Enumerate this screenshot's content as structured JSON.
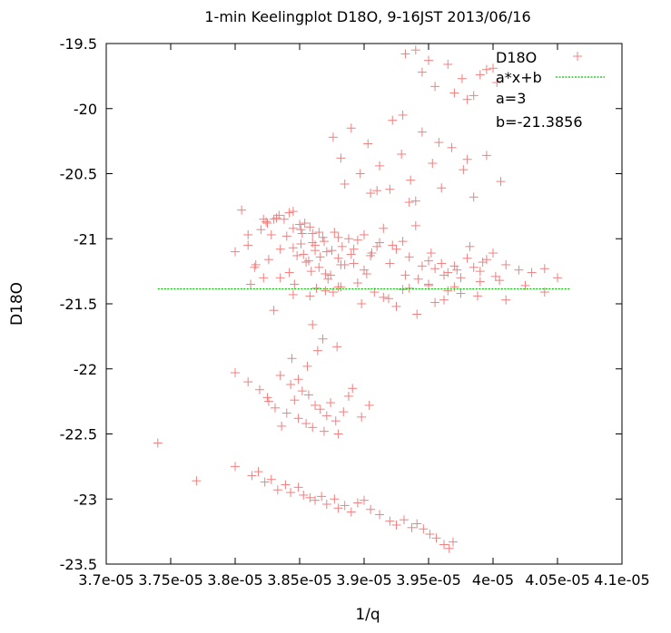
{
  "chart_data": {
    "type": "scatter",
    "title": "1-min Keelingplot D18O, 9-16JST 2013/06/16",
    "xlabel": "1/q",
    "ylabel": "D18O",
    "xlim": [
      3.7e-05,
      4.1e-05
    ],
    "ylim": [
      -23.5,
      -19.5
    ],
    "x_ticks": [
      3.7e-05,
      3.75e-05,
      3.8e-05,
      3.85e-05,
      3.9e-05,
      3.95e-05,
      4e-05,
      4.05e-05,
      4.1e-05
    ],
    "x_tick_labels": [
      "3.7e-05",
      "3.75e-05",
      "3.8e-05",
      "3.85e-05",
      "3.9e-05",
      "3.95e-05",
      "4e-05",
      "4.05e-05",
      "4.1e-05"
    ],
    "y_ticks": [
      -23.5,
      -23,
      -22.5,
      -22,
      -21.5,
      -21,
      -20.5,
      -20,
      -19.5
    ],
    "y_tick_labels": [
      "-23.5",
      "-23",
      "-22.5",
      "-22",
      "-21.5",
      "-21",
      "-20.5",
      "-20",
      "-19.5"
    ],
    "grid": false,
    "legend_position": "top-right",
    "series": [
      {
        "name": "D18O",
        "marker": "plus",
        "color": "#f08080",
        "x": [
          3.74e-05,
          3.77e-05,
          3.8e-05,
          3.813e-05,
          3.818e-05,
          3.823e-05,
          3.828e-05,
          3.833e-05,
          3.839e-05,
          3.843e-05,
          3.849e-05,
          3.853e-05,
          3.858e-05,
          3.862e-05,
          3.867e-05,
          3.871e-05,
          3.877e-05,
          3.88e-05,
          3.885e-05,
          3.89e-05,
          3.895e-05,
          3.9e-05,
          3.905e-05,
          3.912e-05,
          3.92e-05,
          3.925e-05,
          3.931e-05,
          3.937e-05,
          3.941e-05,
          3.946e-05,
          3.951e-05,
          3.956e-05,
          3.962e-05,
          3.966e-05,
          3.969e-05,
          3.8e-05,
          3.81e-05,
          3.819e-05,
          3.825e-05,
          3.831e-05,
          3.835e-05,
          3.84e-05,
          3.843e-05,
          3.846e-05,
          3.849e-05,
          3.852e-05,
          3.855e-05,
          3.857e-05,
          3.86e-05,
          3.862e-05,
          3.866e-05,
          3.869e-05,
          3.871e-05,
          3.874e-05,
          3.878e-05,
          3.88e-05,
          3.884e-05,
          3.888e-05,
          3.891e-05,
          3.898e-05,
          3.904e-05,
          3.844e-05,
          3.86e-05,
          3.849e-05,
          3.856e-05,
          3.868e-05,
          3.879e-05,
          3.836e-05,
          3.826e-05,
          3.864e-05,
          3.816e-05,
          3.822e-05,
          3.828e-05,
          3.835e-05,
          3.838e-05,
          3.842e-05,
          3.845e-05,
          3.848e-05,
          3.851e-05,
          3.854e-05,
          3.857e-05,
          3.86e-05,
          3.862e-05,
          3.865e-05,
          3.868e-05,
          3.871e-05,
          3.874e-05,
          3.877e-05,
          3.88e-05,
          3.883e-05,
          3.888e-05,
          3.892e-05,
          3.9e-05,
          3.906e-05,
          3.846e-05,
          3.853e-05,
          3.858e-05,
          3.863e-05,
          3.869e-05,
          3.834e-05,
          3.824e-05,
          3.859e-05,
          3.851e-05,
          3.866e-05,
          3.876e-05,
          3.8e-05,
          3.805e-05,
          3.81e-05,
          3.815e-05,
          3.82e-05,
          3.826e-05,
          3.83e-05,
          3.835e-05,
          3.84e-05,
          3.845e-05,
          3.85e-05,
          3.855e-05,
          3.86e-05,
          3.865e-05,
          3.87e-05,
          3.875e-05,
          3.88e-05,
          3.885e-05,
          3.89e-05,
          3.895e-05,
          3.9e-05,
          3.905e-05,
          3.91e-05,
          3.915e-05,
          3.92e-05,
          3.925e-05,
          3.93e-05,
          3.935e-05,
          3.94e-05,
          3.945e-05,
          3.95e-05,
          3.955e-05,
          3.96e-05,
          3.965e-05,
          3.97e-05,
          3.975e-05,
          3.98e-05,
          3.985e-05,
          3.99e-05,
          3.995e-05,
          4e-05,
          4.01e-05,
          4.02e-05,
          4.03e-05,
          4.04e-05,
          4.05e-05,
          3.812e-05,
          3.832e-05,
          3.852e-05,
          3.872e-05,
          3.892e-05,
          3.912e-05,
          3.932e-05,
          3.952e-05,
          3.972e-05,
          3.992e-05,
          3.822e-05,
          3.842e-05,
          3.862e-05,
          3.882e-05,
          3.902e-05,
          3.922e-05,
          3.942e-05,
          3.962e-05,
          3.982e-05,
          4.002e-05,
          3.83e-05,
          3.858e-05,
          3.882e-05,
          3.898e-05,
          3.908e-05,
          3.919e-05,
          3.93e-05,
          3.941e-05,
          3.95e-05,
          3.962e-05,
          3.975e-05,
          3.99e-05,
          4.01e-05,
          4.025e-05,
          3.845e-05,
          3.87e-05,
          3.895e-05,
          3.915e-05,
          3.935e-05,
          3.955e-05,
          3.97e-05,
          3.988e-05,
          4.005e-05,
          4.04e-05,
          3.88e-05,
          3.925e-05,
          3.95e-05,
          3.965e-05,
          3.876e-05,
          3.882e-05,
          3.89e-05,
          3.897e-05,
          3.903e-05,
          3.912e-05,
          3.92e-05,
          3.929e-05,
          3.936e-05,
          3.945e-05,
          3.953e-05,
          3.96e-05,
          3.968e-05,
          3.977e-05,
          3.985e-05,
          3.995e-05,
          4.006e-05,
          3.905e-05,
          3.93e-05,
          3.958e-05,
          3.98e-05,
          3.94e-05,
          3.922e-05,
          3.932e-05,
          3.945e-05,
          3.955e-05,
          3.965e-05,
          3.976e-05,
          3.985e-05,
          3.995e-05,
          4.003e-05,
          3.95e-05,
          3.97e-05,
          3.99e-05,
          4e-05,
          3.94e-05,
          3.98e-05,
          3.81e-05,
          3.825e-05,
          3.845e-05,
          3.885e-05,
          3.91e-05,
          3.935e-05
        ],
        "y": [
          -22.57,
          -22.86,
          -22.75,
          -22.82,
          -22.79,
          -22.87,
          -22.85,
          -22.93,
          -22.89,
          -22.95,
          -22.91,
          -22.97,
          -22.99,
          -23.01,
          -22.98,
          -23.04,
          -23.0,
          -23.07,
          -23.05,
          -23.1,
          -23.03,
          -23.01,
          -23.08,
          -23.12,
          -23.17,
          -23.2,
          -23.16,
          -23.22,
          -23.19,
          -23.23,
          -23.27,
          -23.3,
          -23.35,
          -23.38,
          -23.33,
          -22.03,
          -22.1,
          -22.16,
          -22.22,
          -22.3,
          -22.05,
          -22.34,
          -22.12,
          -22.24,
          -22.38,
          -22.17,
          -22.42,
          -22.2,
          -22.45,
          -22.28,
          -22.31,
          -22.48,
          -22.36,
          -22.26,
          -22.4,
          -22.5,
          -22.33,
          -22.21,
          -22.15,
          -22.37,
          -22.28,
          -21.92,
          -21.66,
          -22.08,
          -21.98,
          -21.77,
          -21.83,
          -22.44,
          -22.25,
          -21.86,
          -21.2,
          -21.3,
          -20.97,
          -21.08,
          -20.85,
          -21.26,
          -20.92,
          -21.13,
          -21.04,
          -20.88,
          -21.17,
          -20.96,
          -21.05,
          -21.22,
          -20.99,
          -21.1,
          -21.28,
          -20.95,
          -21.15,
          -21.06,
          -21.0,
          -21.19,
          -21.24,
          -21.11,
          -21.35,
          -21.12,
          -20.91,
          -21.38,
          -21.02,
          -20.82,
          -20.87,
          -21.25,
          -20.93,
          -21.14,
          -21.41,
          -21.1,
          -20.78,
          -21.05,
          -21.22,
          -20.93,
          -21.16,
          -20.85,
          -21.3,
          -20.98,
          -21.07,
          -20.89,
          -21.18,
          -21.03,
          -20.95,
          -21.27,
          -21.09,
          -20.99,
          -21.2,
          -21.12,
          -21.01,
          -20.97,
          -21.13,
          -21.06,
          -20.92,
          -21.19,
          -21.08,
          -21.02,
          -21.14,
          -20.9,
          -21.21,
          -21.17,
          -21.23,
          -21.19,
          -21.26,
          -21.21,
          -21.3,
          -21.15,
          -21.22,
          -21.25,
          -21.16,
          -21.11,
          -21.2,
          -21.24,
          -21.26,
          -21.23,
          -21.3,
          -21.35,
          -20.84,
          -20.96,
          -21.31,
          -21.08,
          -21.03,
          -21.28,
          -21.11,
          -21.24,
          -21.18,
          -20.85,
          -20.8,
          -21.09,
          -21.2,
          -21.27,
          -21.05,
          -21.31,
          -21.28,
          -21.06,
          -21.29,
          -21.55,
          -21.44,
          -21.37,
          -21.5,
          -21.41,
          -21.46,
          -21.39,
          -21.58,
          -21.35,
          -21.47,
          -21.42,
          -21.33,
          -21.47,
          -21.36,
          -21.43,
          -21.4,
          -21.34,
          -21.45,
          -21.38,
          -21.49,
          -21.37,
          -21.44,
          -21.32,
          -21.41,
          -21.37,
          -21.52,
          -21.36,
          -21.4,
          -20.22,
          -20.38,
          -20.15,
          -20.5,
          -20.27,
          -20.44,
          -20.62,
          -20.35,
          -20.55,
          -20.18,
          -20.42,
          -20.61,
          -20.3,
          -20.47,
          -20.68,
          -20.36,
          -20.56,
          -20.65,
          -20.05,
          -20.26,
          -20.39,
          -20.71,
          -20.09,
          -19.58,
          -19.72,
          -19.83,
          -19.66,
          -19.77,
          -19.9,
          -19.7,
          -19.8,
          -19.63,
          -19.88,
          -19.74,
          -19.69,
          -19.55,
          -19.93,
          -20.97,
          -20.88,
          -20.79,
          -20.58,
          -20.63,
          -20.72
        ]
      },
      {
        "name": "a*x+b",
        "type": "line",
        "color": "#00c000",
        "x": [
          3.74e-05,
          4.06e-05
        ],
        "y": [
          -21.3856,
          -21.3856
        ]
      }
    ],
    "legend": {
      "entries": [
        "D18O",
        "a*x+b"
      ],
      "fit_text": [
        "a=3",
        "b=-21.3856"
      ]
    }
  }
}
